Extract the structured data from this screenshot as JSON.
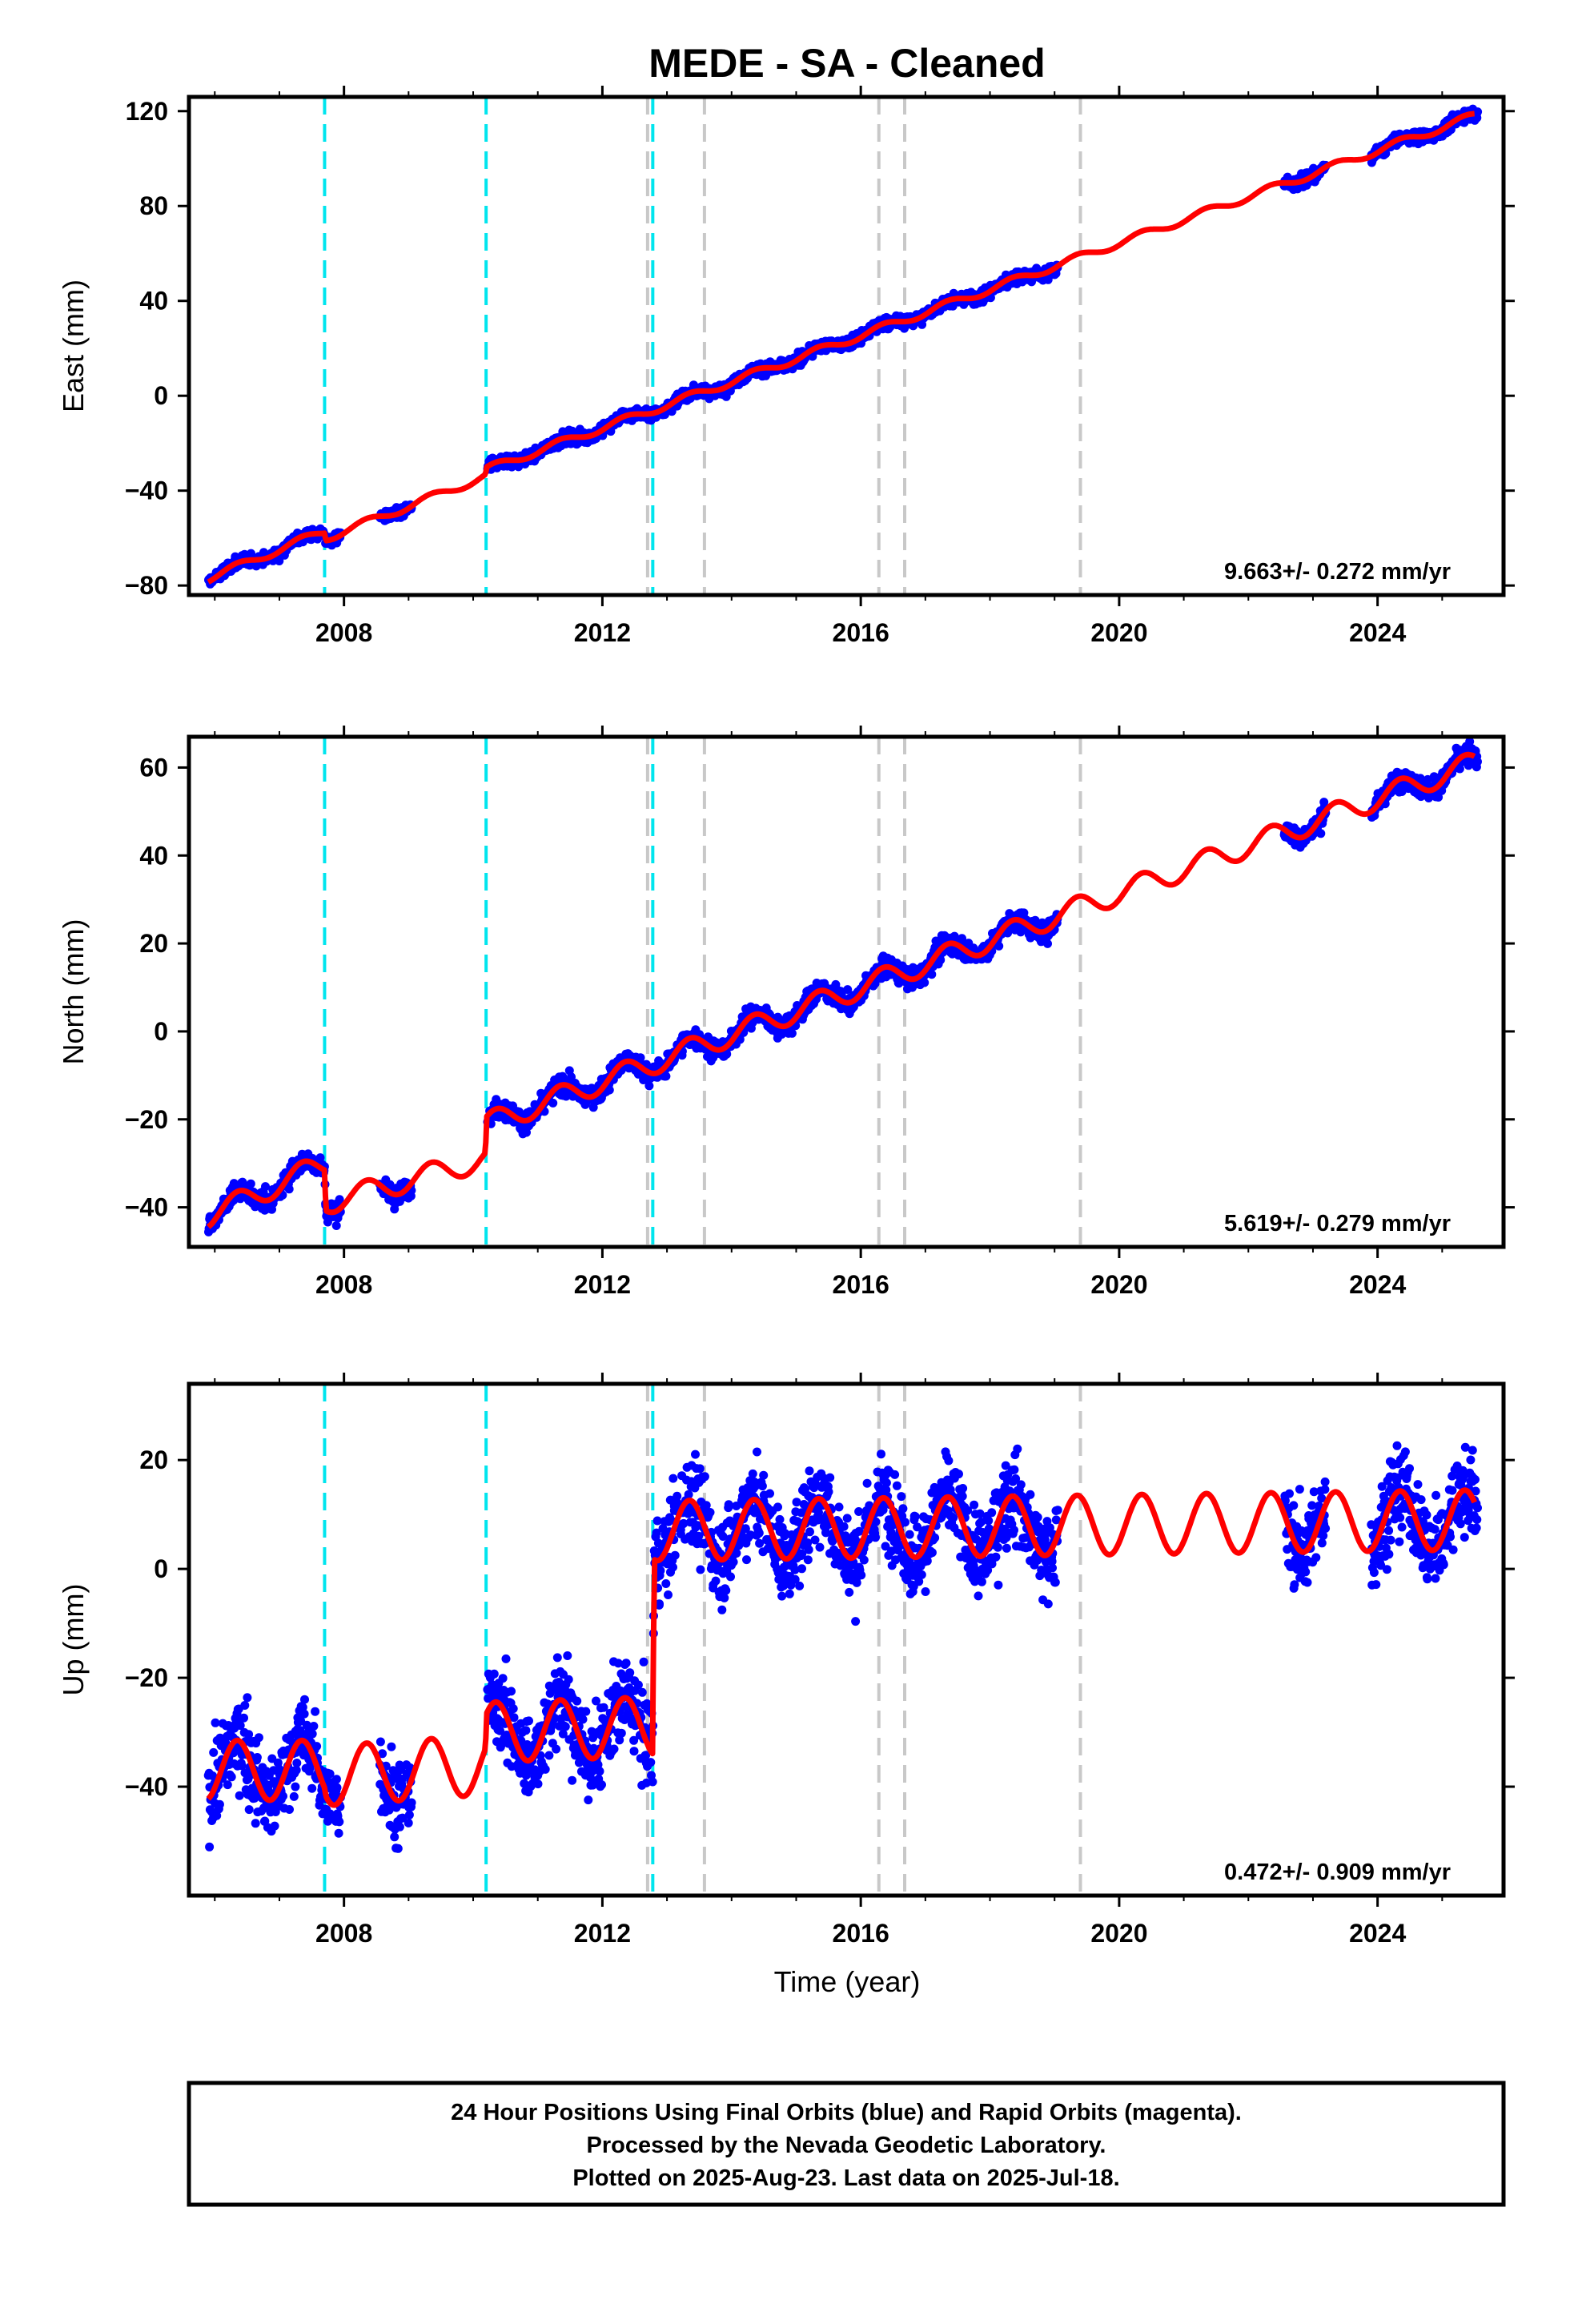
{
  "title": "MEDE  - SA - Cleaned",
  "xlabel": "Time (year)",
  "footer": {
    "lines": [
      "24 Hour Positions Using Final Orbits (blue) and Rapid Orbits (magenta).",
      "Processed by the Nevada Geodetic Laboratory.",
      "Plotted on 2025-Aug-23. Last data on 2025-Jul-18."
    ]
  },
  "colors": {
    "points": "#0000ff",
    "model": "#ff0000",
    "equipment_change": "#00e5ee",
    "other_event": "#c8c8c8"
  },
  "chart_data": [
    {
      "type": "scatter",
      "name": "east",
      "ylabel": "East (mm)",
      "rate_text": "9.663+/- 0.272 mm/yr",
      "xlim": [
        2005.6,
        2025.95
      ],
      "ylim": [
        -84,
        126
      ],
      "xticks": [
        2008,
        2012,
        2016,
        2020,
        2024
      ],
      "yticks": [
        120,
        80,
        40,
        0,
        -40,
        -80
      ],
      "events_equipment": [
        2007.7,
        2010.2,
        2012.78
      ],
      "events_other": [
        2012.7,
        2013.58,
        2016.28,
        2016.68,
        2019.4
      ],
      "model": {
        "rate": 9.663,
        "knots": [
          [
            2005.9,
            -77
          ],
          [
            2007.7,
            -57
          ],
          [
            2007.72,
            -60
          ],
          [
            2010.19,
            -34
          ],
          [
            2010.21,
            -31
          ],
          [
            2025.5,
            118
          ]
        ],
        "seasonal_amplitude": 1.6
      },
      "observations": {
        "segments": [
          [
            2005.9,
            2007.95
          ],
          [
            2008.55,
            2009.05
          ],
          [
            2010.22,
            2019.05
          ],
          [
            2022.55,
            2023.2
          ],
          [
            2023.9,
            2025.55
          ]
        ],
        "noise": 1.8
      }
    },
    {
      "type": "scatter",
      "name": "north",
      "ylabel": "North (mm)",
      "rate_text": "5.619+/- 0.279 mm/yr",
      "xlim": [
        2005.6,
        2025.95
      ],
      "ylim": [
        -49,
        67
      ],
      "xticks": [
        2008,
        2012,
        2016,
        2020,
        2024
      ],
      "yticks": [
        60,
        40,
        20,
        0,
        -20,
        -40
      ],
      "events_equipment": [
        2007.7,
        2010.2,
        2012.78
      ],
      "events_other": [
        2012.7,
        2013.58,
        2016.28,
        2016.68,
        2019.4
      ],
      "model": {
        "rate": 5.619,
        "knots": [
          [
            2005.9,
            -42
          ],
          [
            2007.7,
            -30
          ],
          [
            2007.72,
            -39
          ],
          [
            2010.19,
            -29
          ],
          [
            2010.21,
            -21
          ],
          [
            2025.5,
            61
          ]
        ],
        "seasonal_amplitude": 2.6
      },
      "observations": {
        "segments": [
          [
            2005.9,
            2007.95
          ],
          [
            2008.55,
            2009.05
          ],
          [
            2010.22,
            2019.05
          ],
          [
            2022.55,
            2023.2
          ],
          [
            2023.9,
            2025.55
          ]
        ],
        "noise": 1.6
      }
    },
    {
      "type": "scatter",
      "name": "up",
      "ylabel": "Up (mm)",
      "rate_text": "0.472+/- 0.909 mm/yr",
      "xlim": [
        2005.6,
        2025.95
      ],
      "ylim": [
        -60,
        34
      ],
      "xticks": [
        2008,
        2012,
        2016,
        2020,
        2024
      ],
      "yticks": [
        20,
        0,
        -20,
        -40
      ],
      "events_equipment": [
        2007.7,
        2010.2,
        2012.78
      ],
      "events_other": [
        2012.7,
        2013.58,
        2016.28,
        2016.68,
        2019.4
      ],
      "model": {
        "rate": 0.472,
        "knots": [
          [
            2005.9,
            -37
          ],
          [
            2007.7,
            -37
          ],
          [
            2007.72,
            -38
          ],
          [
            2010.19,
            -36
          ],
          [
            2010.21,
            -30
          ],
          [
            2012.78,
            -29
          ],
          [
            2012.8,
            7
          ],
          [
            2025.5,
            9
          ]
        ],
        "seasonal_amplitude": 5.5
      },
      "observations": {
        "segments": [
          [
            2005.9,
            2007.95
          ],
          [
            2008.55,
            2009.05
          ],
          [
            2010.22,
            2019.05
          ],
          [
            2022.55,
            2023.2
          ],
          [
            2023.9,
            2025.55
          ]
        ],
        "noise": 5.5
      }
    }
  ]
}
